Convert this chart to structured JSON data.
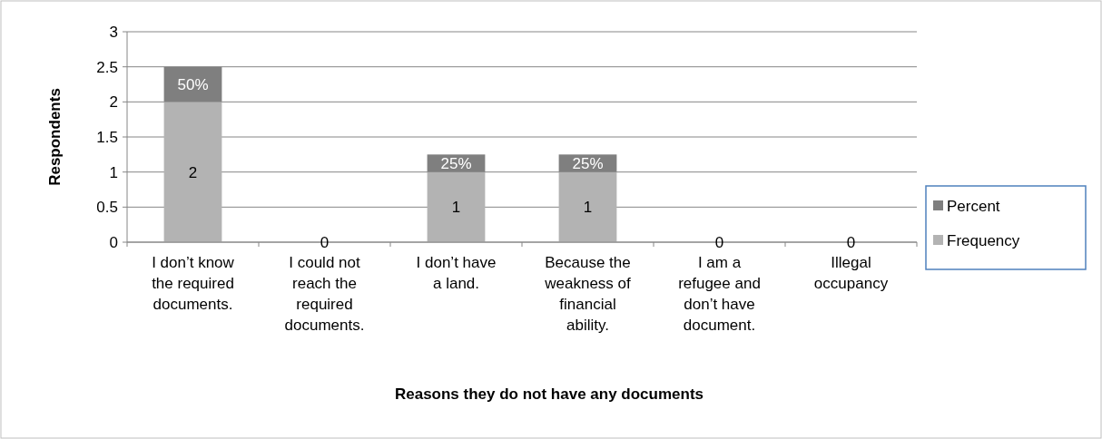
{
  "chart_data": {
    "type": "bar",
    "stacked": true,
    "xlabel": "Reasons they do not have any documents",
    "ylabel": "Respondents",
    "categories": [
      "I don’t know the required documents.",
      "I could not reach the required documents.",
      "I don’t have a land.",
      "Because the weakness of financial ability.",
      "I am a refugee and don’t have document.",
      "Illegal occupancy"
    ],
    "series": [
      {
        "name": "Frequency",
        "color": "#b3b3b3",
        "values": [
          2,
          0,
          1,
          1,
          0,
          0
        ],
        "value_labels": [
          "2",
          "0",
          "1",
          "1",
          "0",
          "0"
        ]
      },
      {
        "name": "Percent",
        "color": "#7f7f7f",
        "values": [
          0.5,
          0,
          0.25,
          0.25,
          0,
          0
        ],
        "value_labels": [
          "50%",
          null,
          "25%",
          "25%",
          null,
          null
        ]
      }
    ],
    "ylim": [
      0,
      3
    ],
    "yticks": [
      0,
      0.5,
      1,
      1.5,
      2,
      2.5,
      3
    ],
    "grid": "y",
    "legend": "right"
  }
}
